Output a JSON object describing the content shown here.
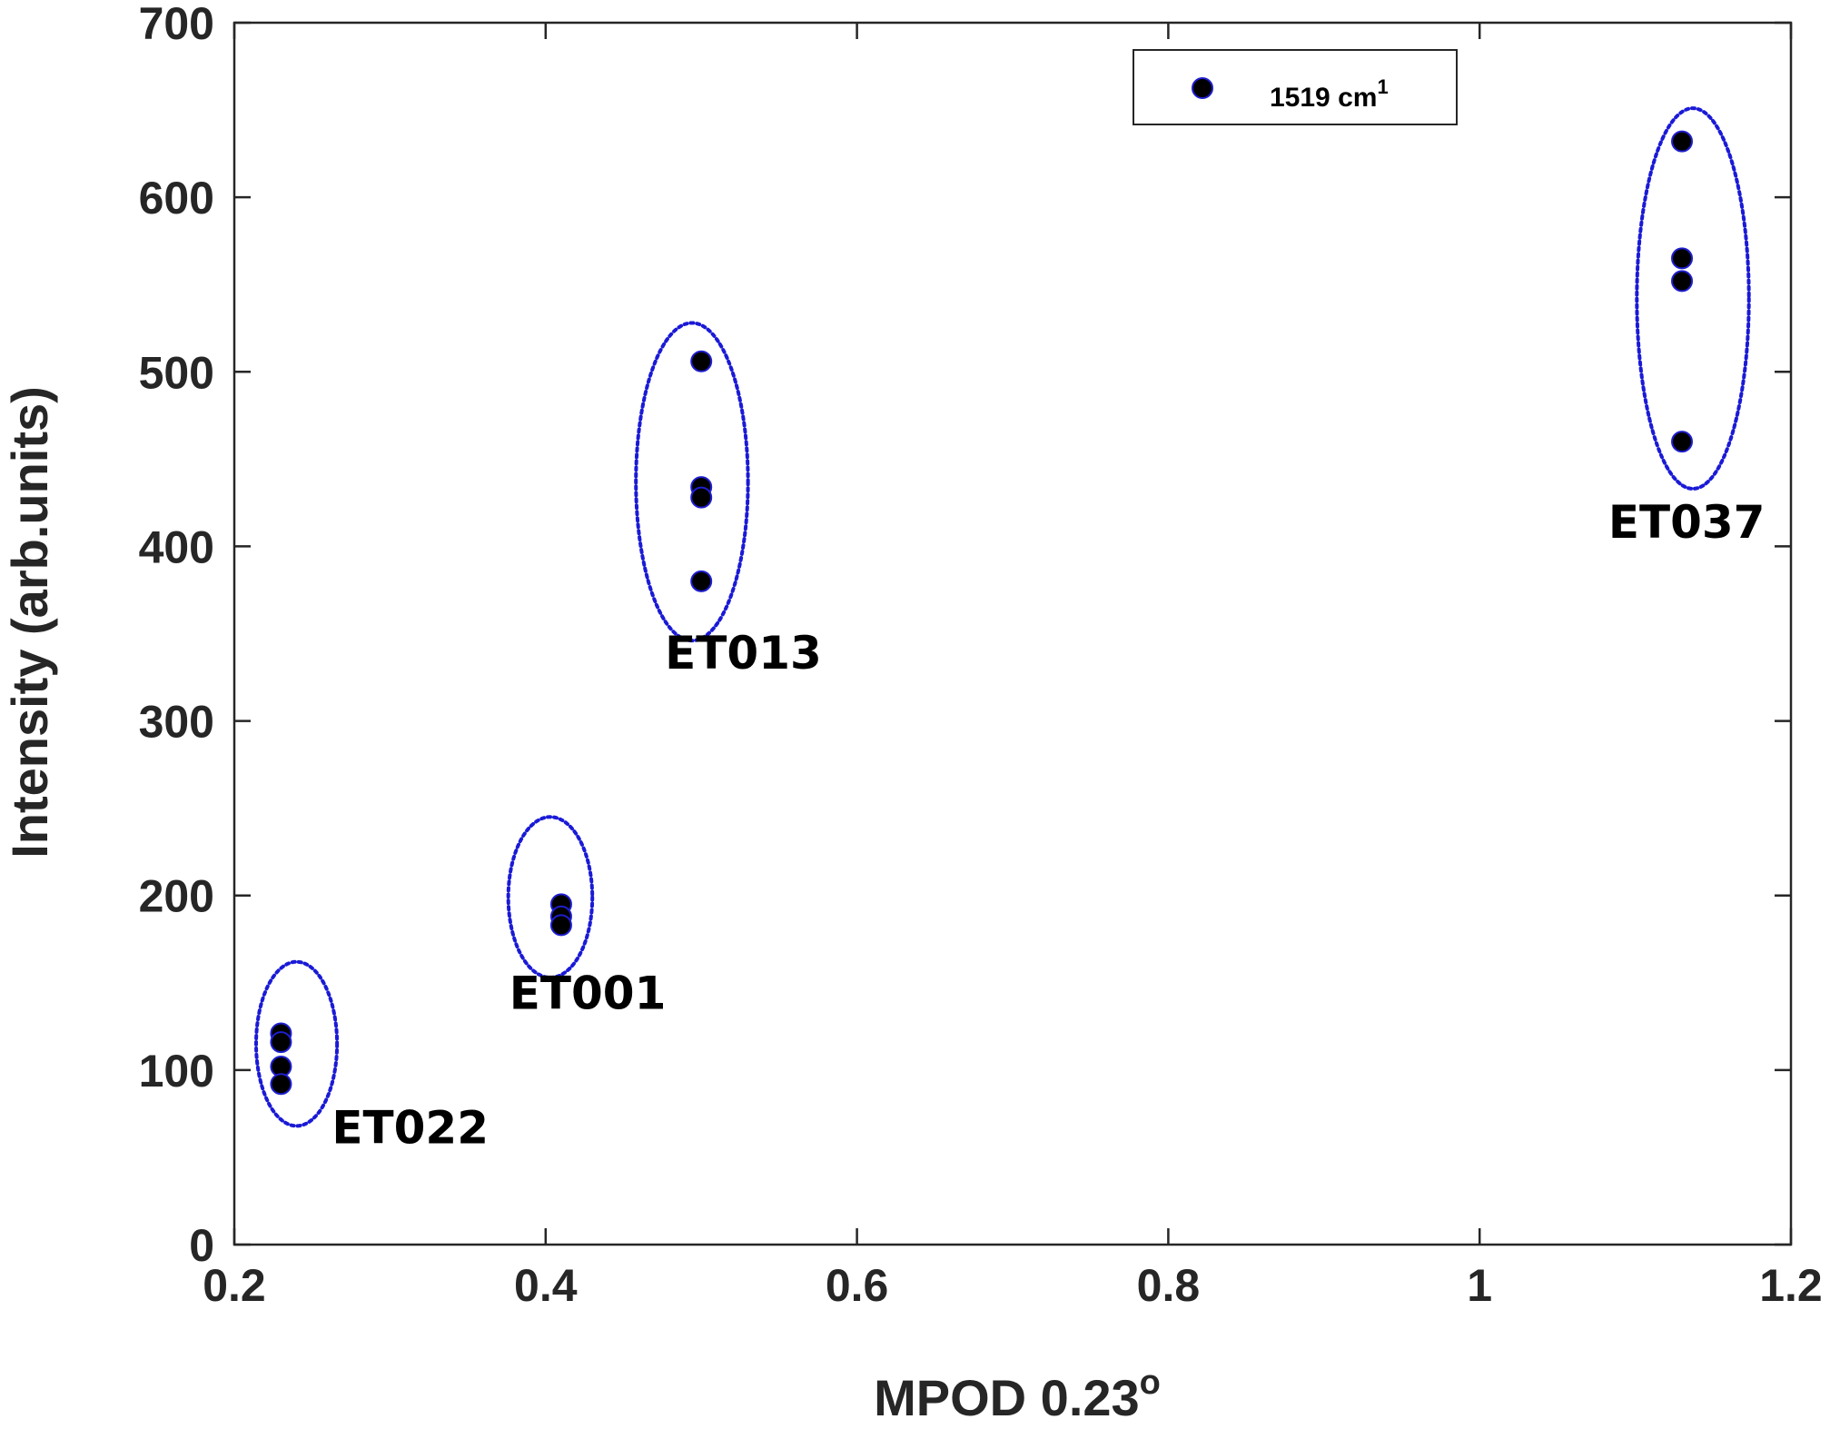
{
  "chart_data": {
    "type": "scatter",
    "xlabel": "MPOD 0.23",
    "xlabel_superscript": "o",
    "ylabel": "Intensity (arb.units)",
    "xlim": [
      0.2,
      1.2
    ],
    "ylim": [
      0,
      700
    ],
    "xticks": [
      0.2,
      0.4,
      0.6,
      0.8,
      1,
      1.2
    ],
    "xtick_labels": [
      "0.2",
      "0.4",
      "0.6",
      "0.8",
      "1",
      "1.2"
    ],
    "yticks": [
      0,
      100,
      200,
      300,
      400,
      500,
      600,
      700
    ],
    "ytick_labels": [
      "0",
      "100",
      "200",
      "300",
      "400",
      "500",
      "600",
      "700"
    ],
    "grid": false,
    "legend_position": "top-right",
    "series": [
      {
        "name": "1519 cm",
        "name_superscript": "1",
        "marker_color": "#000000",
        "marker_edge": "#1f1fd0",
        "points": [
          {
            "x": 0.23,
            "y": 121
          },
          {
            "x": 0.23,
            "y": 116
          },
          {
            "x": 0.23,
            "y": 102
          },
          {
            "x": 0.23,
            "y": 92
          },
          {
            "x": 0.41,
            "y": 195
          },
          {
            "x": 0.41,
            "y": 188
          },
          {
            "x": 0.41,
            "y": 183
          },
          {
            "x": 0.5,
            "y": 506
          },
          {
            "x": 0.5,
            "y": 434
          },
          {
            "x": 0.5,
            "y": 428
          },
          {
            "x": 0.5,
            "y": 380
          },
          {
            "x": 1.13,
            "y": 632
          },
          {
            "x": 1.13,
            "y": 565
          },
          {
            "x": 1.13,
            "y": 552
          },
          {
            "x": 1.13,
            "y": 460
          }
        ]
      }
    ],
    "annotations": [
      {
        "label": "ET022",
        "cx": 0.24,
        "cy": 115,
        "rx": 0.026,
        "ry": 47,
        "label_x": 0.313,
        "label_y": 58
      },
      {
        "label": "ET001",
        "cx": 0.403,
        "cy": 199,
        "rx": 0.027,
        "ry": 46,
        "label_x": 0.427,
        "label_y": 135
      },
      {
        "label": "ET013",
        "cx": 0.494,
        "cy": 437,
        "rx": 0.036,
        "ry": 91,
        "label_x": 0.527,
        "label_y": 330
      },
      {
        "label": "ET037",
        "cx": 1.137,
        "cy": 542,
        "rx": 0.036,
        "ry": 109,
        "label_x": 1.133,
        "label_y": 405
      }
    ],
    "ellipse_color": "#1a1ad6"
  }
}
